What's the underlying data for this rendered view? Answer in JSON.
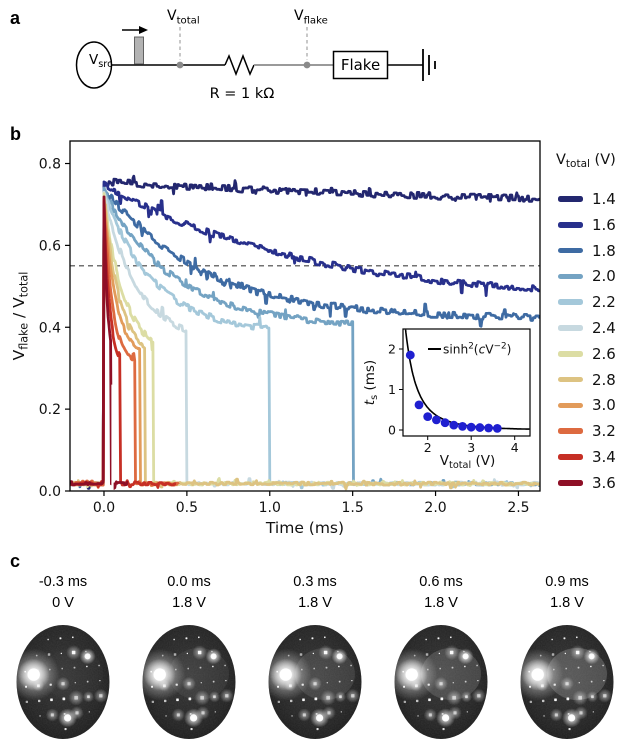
{
  "panel_a": {
    "label": "a",
    "source_label": [
      {
        "t": "V"
      },
      {
        "t": "src",
        "sub": true
      }
    ],
    "probe_total_label": [
      {
        "t": "V"
      },
      {
        "t": "total",
        "sub": true
      }
    ],
    "probe_flake_label": [
      {
        "t": "V"
      },
      {
        "t": "flake",
        "sub": true
      }
    ],
    "resistor_label": "R = 1 kΩ",
    "flake_label": "Flake"
  },
  "panel_b": {
    "label": "b",
    "legend": {
      "title_text": "V_total (V)",
      "title_segments": [
        {
          "t": "V"
        },
        {
          "t": "total",
          "sub": true
        },
        {
          "t": " (V)"
        }
      ]
    },
    "chart_data": [
      {
        "id": "main",
        "type": "line",
        "xlabel": "Time (ms)",
        "ylabel_text": "V_flake / V_total",
        "ylabel_segments": [
          {
            "t": "V"
          },
          {
            "t": "flake",
            "sub": true
          },
          {
            "t": " / V"
          },
          {
            "t": "total",
            "sub": true
          }
        ],
        "xlim": [
          -0.205,
          2.63
        ],
        "ylim": [
          0,
          0.855
        ],
        "xticks": [
          0.0,
          0.5,
          1.0,
          1.5,
          2.0,
          2.5
        ],
        "xtick_labels": [
          "0.0",
          "0.5",
          "1.0",
          "1.5",
          "2.0",
          "2.5"
        ],
        "yticks": [
          0.0,
          0.2,
          0.4,
          0.6,
          0.8
        ],
        "ytick_labels": [
          "0.0",
          "0.2",
          "0.4",
          "0.6",
          "0.8"
        ],
        "grid": false,
        "threshold_dashed_y": 0.55,
        "baseline_level": 0.018,
        "legend_position": "right",
        "series": [
          {
            "v_total": 1.4,
            "label": "1.4",
            "color": "#23276f",
            "peak": 0.755,
            "plateau": 0.685,
            "tau_ms": 3.0,
            "pulse_end_ms": null,
            "trace_end_ms": 2.63,
            "t_s_ms": null
          },
          {
            "v_total": 1.6,
            "label": "1.6",
            "color": "#28308c",
            "peak": 0.75,
            "plateau": 0.46,
            "tau_ms": 1.2,
            "pulse_end_ms": null,
            "trace_end_ms": 2.63,
            "t_s_ms": 1.85
          },
          {
            "v_total": 1.8,
            "label": "1.8",
            "color": "#3e6ba3",
            "peak": 0.74,
            "plateau": 0.42,
            "tau_ms": 0.6,
            "pulse_end_ms": null,
            "trace_end_ms": 2.63,
            "t_s_ms": 0.62
          },
          {
            "v_total": 2.0,
            "label": "2.0",
            "color": "#74a3c3",
            "peak": 0.735,
            "plateau": 0.4,
            "tau_ms": 0.42,
            "pulse_end_ms": 1.5,
            "trace_end_ms": 2.63,
            "t_s_ms": 0.33
          },
          {
            "v_total": 2.2,
            "label": "2.2",
            "color": "#a4c8da",
            "peak": 0.73,
            "plateau": 0.385,
            "tau_ms": 0.3,
            "pulse_end_ms": 1.0,
            "trace_end_ms": 2.63,
            "t_s_ms": 0.25
          },
          {
            "v_total": 2.4,
            "label": "2.4",
            "color": "#c7d9e0",
            "peak": 0.725,
            "plateau": 0.365,
            "tau_ms": 0.2,
            "pulse_end_ms": 0.5,
            "trace_end_ms": 2.63,
            "t_s_ms": 0.18
          },
          {
            "v_total": 2.6,
            "label": "2.6",
            "color": "#dcdda4",
            "peak": 0.72,
            "plateau": 0.335,
            "tau_ms": 0.12,
            "pulse_end_ms": 0.3,
            "trace_end_ms": 2.63,
            "t_s_ms": 0.12
          },
          {
            "v_total": 2.8,
            "label": "2.8",
            "color": "#ddc382",
            "peak": 0.715,
            "plateau": 0.325,
            "tau_ms": 0.095,
            "pulse_end_ms": 0.25,
            "trace_end_ms": 2.63,
            "t_s_ms": 0.09
          },
          {
            "v_total": 3.0,
            "label": "3.0",
            "color": "#e29b5a",
            "peak": 0.71,
            "plateau": 0.32,
            "tau_ms": 0.075,
            "pulse_end_ms": 0.22,
            "trace_end_ms": 0.45,
            "t_s_ms": 0.07
          },
          {
            "v_total": 3.2,
            "label": "3.2",
            "color": "#dd6a40",
            "peak": 0.705,
            "plateau": 0.3,
            "tau_ms": 0.055,
            "pulse_end_ms": 0.19,
            "trace_end_ms": 0.455,
            "t_s_ms": 0.06
          },
          {
            "v_total": 3.4,
            "label": "3.4",
            "color": "#c62f25",
            "peak": 0.7,
            "plateau": 0.3,
            "tau_ms": 0.035,
            "pulse_end_ms": 0.1,
            "trace_end_ms": 0.44,
            "t_s_ms": 0.05
          },
          {
            "v_total": 3.6,
            "label": "3.6",
            "color": "#8e0f26",
            "peak": 0.7,
            "plateau": 0.3,
            "tau_ms": 0.022,
            "pulse_end_ms": 0.045,
            "trace_end_ms": 0.15,
            "t_s_ms": 0.04
          }
        ]
      },
      {
        "id": "inset",
        "type": "scatter",
        "xlabel_text": "V_total (V)",
        "xlabel_segments": [
          {
            "t": "V"
          },
          {
            "t": "total",
            "sub": true
          },
          {
            "t": " (V)"
          }
        ],
        "ylabel_text": "t_s (ms)",
        "ylabel_segments": [
          {
            "t": "t",
            "italic": true
          },
          {
            "t": "s",
            "sub": true
          },
          {
            "t": " (ms)"
          }
        ],
        "fit_label_text": "sinh²(cV⁻²)",
        "fit_label_segments": [
          {
            "t": "sinh"
          },
          {
            "t": "2",
            "sup": true
          },
          {
            "t": "("
          },
          {
            "t": "c",
            "italic": true
          },
          {
            "t": "V"
          },
          {
            "t": "−2",
            "sup": true
          },
          {
            "t": ")"
          }
        ],
        "xlim": [
          1.43,
          4.35
        ],
        "ylim": [
          -0.15,
          2.49
        ],
        "xticks": [
          2,
          3,
          4
        ],
        "xtick_labels": [
          "2",
          "3",
          "4"
        ],
        "yticks": [
          0,
          1,
          2
        ],
        "ytick_labels": [
          "0",
          "1",
          "2"
        ],
        "x": [
          1.6,
          1.8,
          2.0,
          2.2,
          2.4,
          2.6,
          2.8,
          3.0,
          3.2,
          3.4,
          3.6
        ],
        "y": [
          1.85,
          0.62,
          0.33,
          0.25,
          0.18,
          0.12,
          0.09,
          0.07,
          0.06,
          0.05,
          0.04
        ],
        "marker_color": "#1f1fd0",
        "fit": {
          "type": "sinh2",
          "c": 2.75
        }
      }
    ]
  },
  "panel_c": {
    "label": "c",
    "frames": [
      {
        "time": "-0.3 ms",
        "voltage": "0 V"
      },
      {
        "time": "0.0 ms",
        "voltage": "1.8 V"
      },
      {
        "time": "0.3 ms",
        "voltage": "1.8 V"
      },
      {
        "time": "0.6 ms",
        "voltage": "1.8 V"
      },
      {
        "time": "0.9 ms",
        "voltage": "1.8 V"
      }
    ]
  }
}
